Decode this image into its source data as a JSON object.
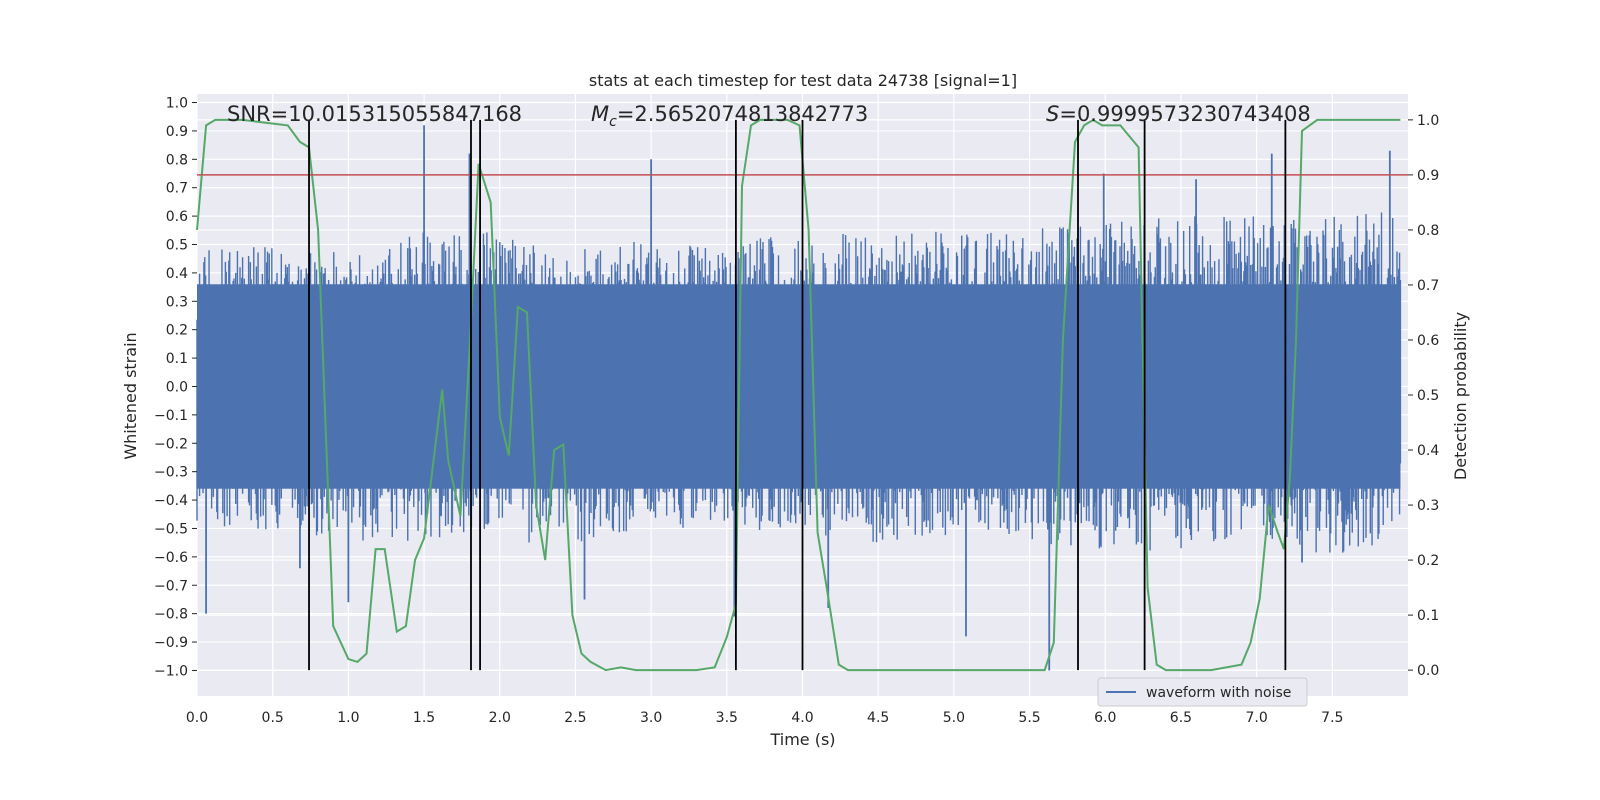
{
  "chart_data": {
    "type": "line",
    "title": "stats at each timestep for test data 24738 [signal=1]",
    "xlabel": "Time (s)",
    "ylabel": "Whitened strain",
    "y2label": "Detection probability",
    "xlim": [
      0.0,
      8.0
    ],
    "ylim": [
      -1.09,
      1.03
    ],
    "y2lim": [
      -0.047,
      1.047
    ],
    "xticks": [
      "0.0",
      "0.5",
      "1.0",
      "1.5",
      "2.0",
      "2.5",
      "3.0",
      "3.5",
      "4.0",
      "4.5",
      "5.0",
      "5.5",
      "6.0",
      "6.5",
      "7.0",
      "7.5"
    ],
    "yticks": [
      "1.0",
      "0.9",
      "0.8",
      "0.7",
      "0.6",
      "0.5",
      "0.4",
      "0.3",
      "0.2",
      "0.1",
      "0.0",
      "−0.1",
      "−0.2",
      "−0.3",
      "−0.4",
      "−0.5",
      "−0.6",
      "−0.7",
      "−0.8",
      "−0.9",
      "−1.0"
    ],
    "y2ticks": [
      "1.0",
      "0.9",
      "0.8",
      "0.7",
      "0.6",
      "0.5",
      "0.4",
      "0.3",
      "0.2",
      "0.1",
      "0.0"
    ],
    "annotations": {
      "snr": "SNR=10.015315055847168",
      "mc_symbol": "M",
      "mc_sub": "c",
      "mc_value": "=2.5652074813842773",
      "s_symbol": "S",
      "s_value": "=0.9999573230743408"
    },
    "threshold": {
      "value": 0.9,
      "axis": "y2",
      "color": "#c44e52"
    },
    "segment_boundaries": [
      0.74,
      1.81,
      1.87,
      3.56,
      4.0,
      5.82,
      6.26,
      7.19
    ],
    "legend": {
      "label": "waveform with noise",
      "location": "lower right"
    },
    "series": [
      {
        "name": "waveform with noise",
        "axis": "y",
        "color": "#4c72b0",
        "envelope": {
          "x": [
            0.0,
            0.5,
            1.0,
            1.5,
            2.0,
            2.5,
            3.0,
            3.5,
            4.0,
            4.5,
            5.0,
            5.5,
            6.0,
            6.5,
            7.0,
            7.5,
            7.95
          ],
          "upper": [
            0.48,
            0.5,
            0.48,
            0.55,
            0.55,
            0.48,
            0.52,
            0.5,
            0.55,
            0.55,
            0.55,
            0.55,
            0.6,
            0.6,
            0.6,
            0.6,
            0.62
          ],
          "lower": [
            -0.48,
            -0.52,
            -0.55,
            -0.55,
            -0.55,
            -0.55,
            -0.5,
            -0.5,
            -0.52,
            -0.55,
            -0.52,
            -0.55,
            -0.58,
            -0.58,
            -0.55,
            -0.6,
            -0.55
          ]
        },
        "spikes": [
          {
            "x": 0.06,
            "y": -0.8
          },
          {
            "x": 0.68,
            "y": -0.64
          },
          {
            "x": 1.0,
            "y": -0.76
          },
          {
            "x": 1.5,
            "y": 0.92
          },
          {
            "x": 1.51,
            "y": -0.52
          },
          {
            "x": 1.8,
            "y": 0.82
          },
          {
            "x": 2.56,
            "y": -0.75
          },
          {
            "x": 3.0,
            "y": 0.8
          },
          {
            "x": 3.55,
            "y": -0.81
          },
          {
            "x": 4.17,
            "y": -0.78
          },
          {
            "x": 5.08,
            "y": -0.88
          },
          {
            "x": 5.63,
            "y": -1.0
          },
          {
            "x": 5.99,
            "y": 0.75
          },
          {
            "x": 6.6,
            "y": 0.73
          },
          {
            "x": 7.1,
            "y": 0.82
          },
          {
            "x": 7.3,
            "y": -0.62
          },
          {
            "x": 7.88,
            "y": 0.83
          }
        ]
      },
      {
        "name": "detection probability",
        "axis": "y2",
        "color": "#55a868",
        "x": [
          0.0,
          0.06,
          0.12,
          0.3,
          0.6,
          0.68,
          0.74,
          0.8,
          0.9,
          1.0,
          1.06,
          1.12,
          1.18,
          1.24,
          1.32,
          1.38,
          1.44,
          1.5,
          1.62,
          1.66,
          1.74,
          1.8,
          1.86,
          1.94,
          2.0,
          2.06,
          2.12,
          2.18,
          2.24,
          2.3,
          2.36,
          2.42,
          2.48,
          2.54,
          2.6,
          2.7,
          2.8,
          2.9,
          3.0,
          3.1,
          3.2,
          3.3,
          3.42,
          3.5,
          3.56,
          3.6,
          3.66,
          3.72,
          3.8,
          3.9,
          3.98,
          4.04,
          4.1,
          4.16,
          4.24,
          4.3,
          4.4,
          4.6,
          4.8,
          5.0,
          5.2,
          5.4,
          5.6,
          5.66,
          5.72,
          5.8,
          5.86,
          5.92,
          5.98,
          6.04,
          6.1,
          6.22,
          6.28,
          6.34,
          6.4,
          6.5,
          6.7,
          6.9,
          6.96,
          7.02,
          7.08,
          7.14,
          7.18,
          7.22,
          7.26,
          7.3,
          7.4,
          7.6,
          7.95
        ],
        "values": [
          0.8,
          0.99,
          1.0,
          1.0,
          0.99,
          0.96,
          0.95,
          0.8,
          0.08,
          0.02,
          0.015,
          0.03,
          0.22,
          0.22,
          0.07,
          0.08,
          0.2,
          0.24,
          0.51,
          0.38,
          0.28,
          0.58,
          0.92,
          0.85,
          0.46,
          0.39,
          0.66,
          0.65,
          0.3,
          0.2,
          0.4,
          0.41,
          0.1,
          0.03,
          0.015,
          0.0,
          0.005,
          0.0,
          0.0,
          0.0,
          0.0,
          0.0,
          0.005,
          0.06,
          0.12,
          0.88,
          0.99,
          1.0,
          1.0,
          1.0,
          0.99,
          0.8,
          0.25,
          0.15,
          0.01,
          0.0,
          0.0,
          0.0,
          0.0,
          0.0,
          0.0,
          0.0,
          0.0,
          0.05,
          0.6,
          0.96,
          0.99,
          1.0,
          0.99,
          0.99,
          0.99,
          0.95,
          0.15,
          0.01,
          0.0,
          0.0,
          0.0,
          0.01,
          0.05,
          0.13,
          0.3,
          0.25,
          0.22,
          0.35,
          0.6,
          0.98,
          1.0,
          1.0,
          1.0
        ]
      }
    ]
  }
}
